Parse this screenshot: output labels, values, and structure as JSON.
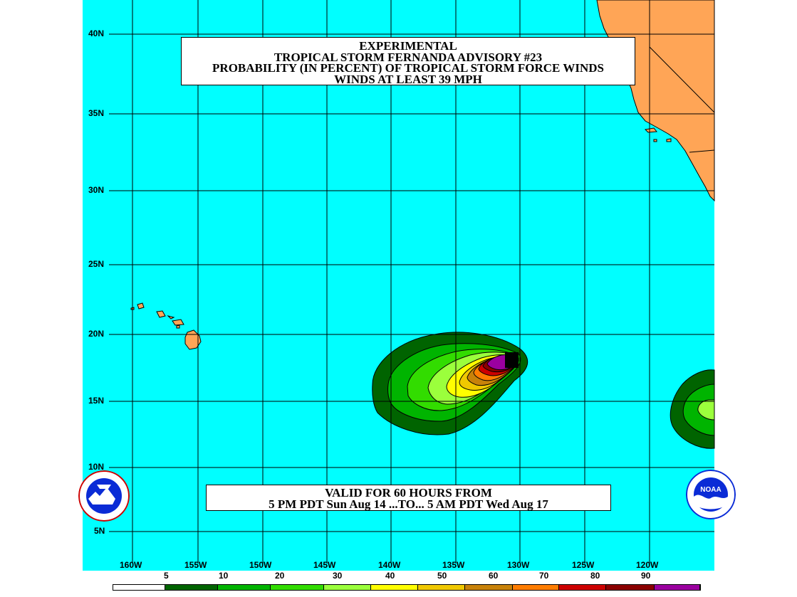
{
  "title": {
    "line1": "EXPERIMENTAL",
    "line2": "TROPICAL STORM FERNANDA ADVISORY #23",
    "line3": "PROBABILITY (IN PERCENT) OF TROPICAL STORM FORCE WINDS",
    "line4": "WINDS AT LEAST 39 MPH"
  },
  "valid": {
    "line1": "VALID FOR 60 HOURS FROM",
    "line2": "5 PM PDT Sun Aug 14 ...TO... 5 AM PDT Wed Aug 17"
  },
  "latitude_labels": [
    "40N",
    "35N",
    "30N",
    "25N",
    "20N",
    "15N",
    "10N",
    "5N"
  ],
  "longitude_labels": [
    "160W",
    "155W",
    "150W",
    "145W",
    "140W",
    "135W",
    "130W",
    "125W",
    "120W"
  ],
  "legend": {
    "labels": [
      "5",
      "10",
      "20",
      "30",
      "40",
      "50",
      "60",
      "70",
      "80",
      "90"
    ],
    "colors": [
      "#ffffff",
      "#006400",
      "#00b400",
      "#32dc00",
      "#9bff3c",
      "#ffff00",
      "#f0c800",
      "#c8820a",
      "#ff7d00",
      "#cd0000",
      "#8b0000",
      "#9b00a0"
    ]
  },
  "colors": {
    "ocean": "#00ffff",
    "land": "#ffa556",
    "grid": "#000000"
  },
  "logos": {
    "left": "nws-logo",
    "right": "noaa-logo"
  }
}
